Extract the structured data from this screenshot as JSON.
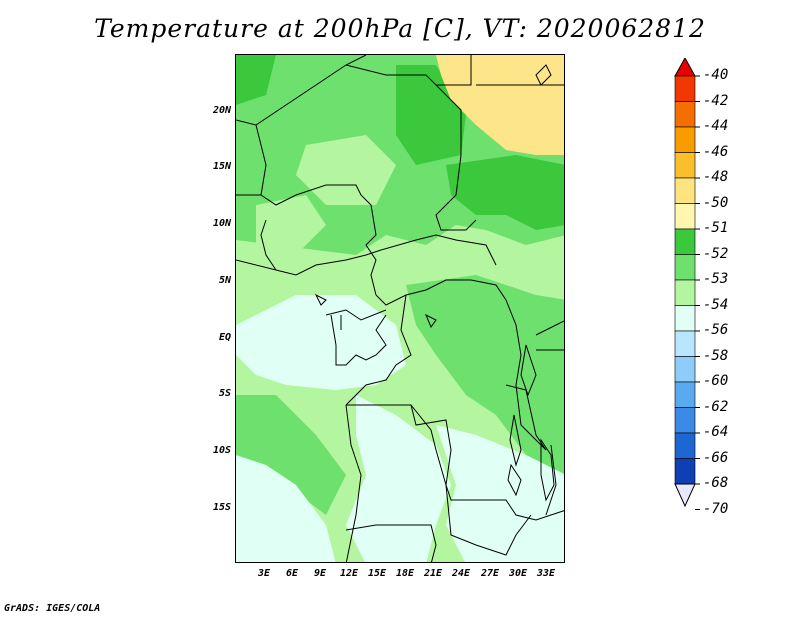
{
  "title": "Temperature at 200hPa [C], VT: 2020062812",
  "footer": "GrADS: IGES/COLA",
  "lat_labels": [
    "20N",
    "15N",
    "10N",
    "5N",
    "EQ",
    "5S",
    "10S",
    "15S"
  ],
  "lon_labels": [
    "3E",
    "6E",
    "9E",
    "12E",
    "15E",
    "18E",
    "21E",
    "24E",
    "27E",
    "30E",
    "33E"
  ],
  "colorbar": {
    "labels": [
      "-40",
      "-42",
      "-44",
      "-46",
      "-48",
      "-50",
      "-51",
      "-52",
      "-53",
      "-54",
      "-56",
      "-58",
      "-60",
      "-62",
      "-64",
      "-66",
      "-68",
      "-70"
    ],
    "colors": [
      "#e60000",
      "#f03800",
      "#f56e00",
      "#f99c00",
      "#fbbf2c",
      "#fde480",
      "#fff7b0",
      "#3cc83c",
      "#6ee06e",
      "#b4f5a0",
      "#e0fff5",
      "#b8e6ff",
      "#8ecdfa",
      "#5aaaf0",
      "#3a8ae6",
      "#1e66d2",
      "#0f3fb3",
      "#07157f"
    ]
  },
  "map": {
    "colors": {
      "c51": "#fde58a",
      "c52": "#3cc83c",
      "c53": "#6ee06e",
      "c54": "#b4f5a0",
      "c56": "#e0fff5",
      "border": "#000000"
    }
  }
}
